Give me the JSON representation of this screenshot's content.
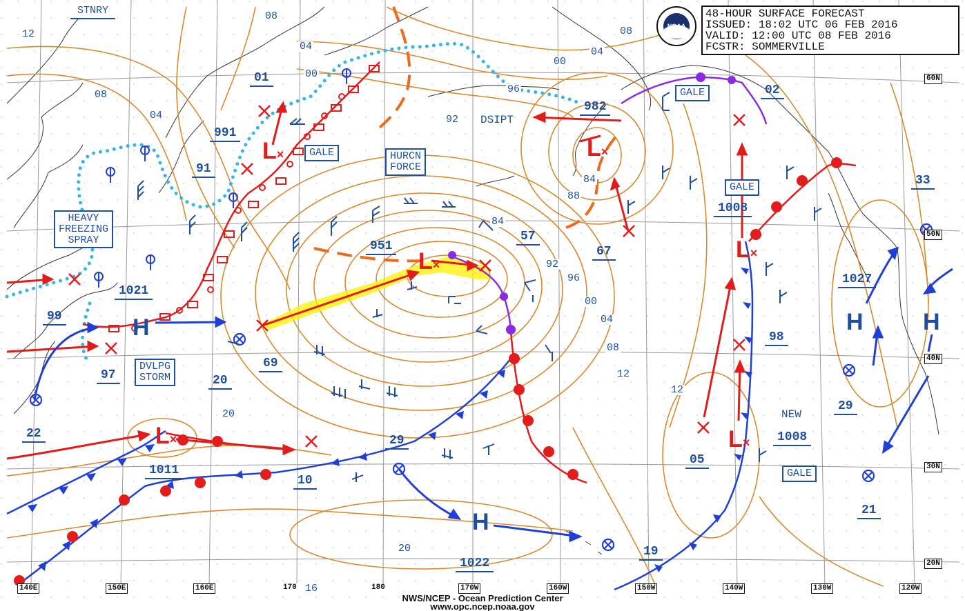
{
  "header": {
    "line1": "48-HOUR SURFACE FORECAST",
    "line2": "ISSUED: 18:02 UTC 06 FEB 2016",
    "line3": "VALID:  12:00 UTC 08 FEB 2016",
    "line4": "FCSTR: SOMMERVILLE"
  },
  "logo": {
    "text": "NOAA"
  },
  "credit": {
    "line1": "NWS/NCEP - Ocean Prediction Center",
    "line2": "www.opc.ncep.noaa.gov"
  },
  "axes": {
    "longitude": [
      "140E",
      "150E",
      "160E",
      "170",
      "180",
      "170W",
      "160W",
      "150W",
      "140W",
      "130W",
      "120W"
    ],
    "latitude": [
      "60N",
      "50N",
      "40N",
      "30N",
      "20N"
    ]
  },
  "colors": {
    "isobar": "#d98a2e",
    "label": "#1e4f9e",
    "cold_front": "#1f3fd6",
    "warm_front": "#e21b1b",
    "occluded": "#8a2be2",
    "track": "#e21b1b",
    "hurricane_shade": "#fff200"
  },
  "warnings": {
    "stnry": "STNRY",
    "gale1": "GALE",
    "hurcn1": "HURCN",
    "hurcn2": "FORCE",
    "gale2": "GALE",
    "gale3": "GALE",
    "heavy1": "HEAVY",
    "heavy2": "FREEZING",
    "heavy3": "SPRAY",
    "dvlpg1": "DVLPG",
    "dvlpg2": "STORM",
    "dsipt": "DSIPT",
    "new": "NEW",
    "gale4": "GALE"
  },
  "pressure_centers": [
    {
      "type": "L",
      "value": "951"
    },
    {
      "type": "L",
      "value": "982"
    },
    {
      "type": "L",
      "value": "991"
    },
    {
      "type": "L",
      "value": "1008"
    },
    {
      "type": "L",
      "value": "1011"
    },
    {
      "type": "L",
      "value": "1008"
    },
    {
      "type": "H",
      "value": "1021"
    },
    {
      "type": "H",
      "value": "1022"
    },
    {
      "type": "H",
      "value": "1027"
    },
    {
      "type": "H",
      "value": ""
    }
  ],
  "forecast_pressures": [
    "01",
    "91",
    "99",
    "97",
    "22",
    "20",
    "69",
    "57",
    "67",
    "29",
    "10",
    "02",
    "33",
    "98",
    "29",
    "05",
    "21",
    "19"
  ],
  "isobar_labels": [
    "12",
    "08",
    "04",
    "00",
    "04",
    "08",
    "00",
    "96",
    "92",
    "08",
    "04",
    "88",
    "84",
    "84",
    "92",
    "96",
    "00",
    "04",
    "08",
    "12",
    "12",
    "20",
    "16",
    "20"
  ]
}
